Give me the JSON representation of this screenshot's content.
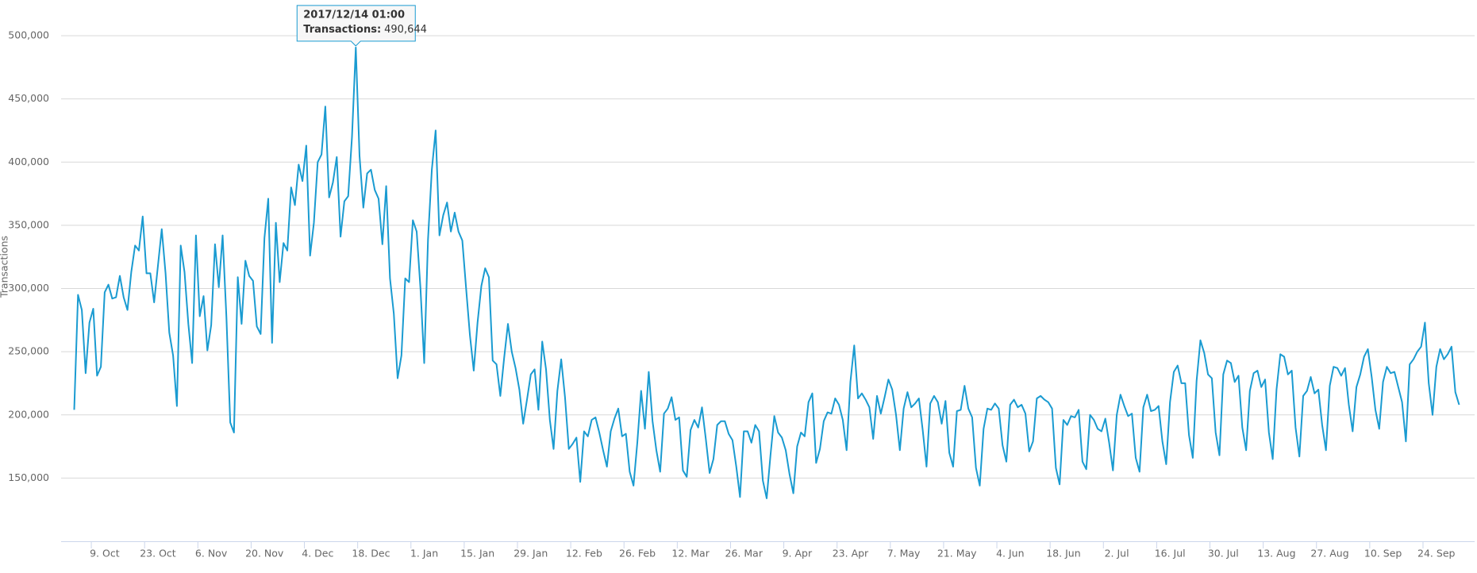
{
  "chart_data": {
    "type": "line",
    "y_axis_label": "Transactions",
    "categories": [
      null,
      null,
      null,
      null,
      null,
      null,
      null,
      null,
      "9. Oct",
      null,
      null,
      null,
      null,
      null,
      null,
      null,
      null,
      null,
      null,
      null,
      null,
      null,
      "23. Oct",
      null,
      null,
      null,
      null,
      null,
      null,
      null,
      null,
      null,
      null,
      null,
      null,
      null,
      "6. Nov",
      null,
      null,
      null,
      null,
      null,
      null,
      null,
      null,
      null,
      null,
      null,
      null,
      null,
      "20. Nov",
      null,
      null,
      null,
      null,
      null,
      null,
      null,
      null,
      null,
      null,
      null,
      null,
      null,
      "4. Dec",
      null,
      null,
      null,
      null,
      null,
      null,
      null,
      null,
      null,
      null,
      null,
      null,
      null,
      "18. Dec",
      null,
      null,
      null,
      null,
      null,
      null,
      null,
      null,
      null,
      null,
      null,
      null,
      null,
      "1. Jan",
      null,
      null,
      null,
      null,
      null,
      null,
      null,
      null,
      null,
      null,
      null,
      null,
      null,
      "15. Jan",
      null,
      null,
      null,
      null,
      null,
      null,
      null,
      null,
      null,
      null,
      null,
      null,
      null,
      "29. Jan",
      null,
      null,
      null,
      null,
      null,
      null,
      null,
      null,
      null,
      null,
      null,
      null,
      null,
      "12. Feb",
      null,
      null,
      null,
      null,
      null,
      null,
      null,
      null,
      null,
      null,
      null,
      null,
      null,
      "26. Feb",
      null,
      null,
      null,
      null,
      null,
      null,
      null,
      null,
      null,
      null,
      null,
      null,
      null,
      "12. Mar",
      null,
      null,
      null,
      null,
      null,
      null,
      null,
      null,
      null,
      null,
      null,
      null,
      null,
      "26. Mar",
      null,
      null,
      null,
      null,
      null,
      null,
      null,
      null,
      null,
      null,
      null,
      null,
      null,
      "9. Apr",
      null,
      null,
      null,
      null,
      null,
      null,
      null,
      null,
      null,
      null,
      null,
      null,
      null,
      "23. Apr",
      null,
      null,
      null,
      null,
      null,
      null,
      null,
      null,
      null,
      null,
      null,
      null,
      null,
      "7. May",
      null,
      null,
      null,
      null,
      null,
      null,
      null,
      null,
      null,
      null,
      null,
      null,
      null,
      "21. May",
      null,
      null,
      null,
      null,
      null,
      null,
      null,
      null,
      null,
      null,
      null,
      null,
      null,
      "4. Jun",
      null,
      null,
      null,
      null,
      null,
      null,
      null,
      null,
      null,
      null,
      null,
      null,
      null,
      "18. Jun",
      null,
      null,
      null,
      null,
      null,
      null,
      null,
      null,
      null,
      null,
      null,
      null,
      null,
      "2. Jul",
      null,
      null,
      null,
      null,
      null,
      null,
      null,
      null,
      null,
      null,
      null,
      null,
      null,
      "16. Jul",
      null,
      null,
      null,
      null,
      null,
      null,
      null,
      null,
      null,
      null,
      null,
      null,
      null,
      "30. Jul",
      null,
      null,
      null,
      null,
      null,
      null,
      null,
      null,
      null,
      null,
      null,
      null,
      null,
      "13. Aug",
      null,
      null,
      null,
      null,
      null,
      null,
      null,
      null,
      null,
      null,
      null,
      null,
      null,
      "27. Aug",
      null,
      null,
      null,
      null,
      null,
      null,
      null,
      null,
      null,
      null,
      null,
      null,
      null,
      "10. Sep",
      null,
      null,
      null,
      null,
      null,
      null,
      null,
      null,
      null,
      null,
      null,
      null,
      null,
      "24. Sep",
      null,
      null,
      null,
      null,
      null,
      null
    ],
    "series": [
      {
        "name": "Transactions",
        "color": "#1a9bd1",
        "values": [
          204000,
          295000,
          283000,
          233000,
          273000,
          284000,
          231000,
          238000,
          297000,
          303000,
          292000,
          293000,
          310000,
          293000,
          283000,
          313000,
          334000,
          330000,
          357000,
          312000,
          312000,
          289000,
          318000,
          347000,
          312000,
          265000,
          247000,
          207000,
          334000,
          313000,
          272000,
          241000,
          342000,
          278000,
          294000,
          251000,
          271000,
          335000,
          301000,
          342000,
          277000,
          194000,
          186000,
          309000,
          272000,
          322000,
          310000,
          306000,
          270000,
          264000,
          340000,
          371000,
          257000,
          352000,
          305000,
          336000,
          330000,
          380000,
          366000,
          398000,
          385000,
          413000,
          326000,
          352000,
          400000,
          406000,
          444000,
          372000,
          384000,
          404000,
          341000,
          369000,
          373000,
          420000,
          490644,
          405000,
          364000,
          391000,
          394000,
          378000,
          371000,
          335000,
          381000,
          308000,
          280000,
          229000,
          247000,
          308000,
          305000,
          354000,
          345000,
          300000,
          241000,
          339000,
          394000,
          425000,
          342000,
          358000,
          368000,
          345000,
          360000,
          345000,
          338000,
          300000,
          263000,
          235000,
          273000,
          302000,
          316000,
          309000,
          243000,
          240000,
          215000,
          245000,
          272000,
          250000,
          237000,
          220000,
          193000,
          212000,
          232000,
          236000,
          204000,
          258000,
          236000,
          196000,
          173000,
          219000,
          244000,
          214000,
          173000,
          177000,
          182000,
          147000,
          187000,
          183000,
          196000,
          198000,
          186000,
          172000,
          159000,
          187000,
          197000,
          205000,
          183000,
          185000,
          155000,
          144000,
          178000,
          219000,
          189000,
          234000,
          195000,
          172000,
          155000,
          201000,
          205000,
          214000,
          196000,
          198000,
          156000,
          151000,
          188000,
          196000,
          190000,
          206000,
          181000,
          154000,
          165000,
          192000,
          195000,
          195000,
          185000,
          180000,
          159000,
          135000,
          187000,
          187000,
          178000,
          192000,
          187000,
          148000,
          134000,
          168000,
          199000,
          186000,
          182000,
          172000,
          153000,
          138000,
          175000,
          186000,
          183000,
          210000,
          217000,
          162000,
          173000,
          195000,
          202000,
          201000,
          213000,
          208000,
          196000,
          172000,
          226000,
          255000,
          213000,
          217000,
          212000,
          206000,
          181000,
          215000,
          201000,
          214000,
          228000,
          220000,
          200000,
          172000,
          205000,
          218000,
          206000,
          209000,
          213000,
          188000,
          159000,
          209000,
          215000,
          210000,
          193000,
          211000,
          170000,
          159000,
          203000,
          204000,
          223000,
          205000,
          198000,
          158000,
          144000,
          189000,
          205000,
          204000,
          209000,
          205000,
          176000,
          163000,
          208000,
          212000,
          206000,
          208000,
          201000,
          171000,
          179000,
          213000,
          215000,
          212000,
          210000,
          205000,
          158000,
          145000,
          196000,
          192000,
          199000,
          198000,
          204000,
          163000,
          157000,
          200000,
          196000,
          189000,
          187000,
          197000,
          178000,
          156000,
          200000,
          216000,
          207000,
          199000,
          201000,
          166000,
          155000,
          206000,
          216000,
          203000,
          204000,
          207000,
          179000,
          161000,
          210000,
          234000,
          239000,
          225000,
          225000,
          184000,
          166000,
          227000,
          259000,
          249000,
          232000,
          229000,
          186000,
          168000,
          232000,
          243000,
          241000,
          226000,
          231000,
          190000,
          172000,
          219000,
          233000,
          235000,
          222000,
          228000,
          186000,
          165000,
          220000,
          248000,
          246000,
          232000,
          235000,
          190000,
          167000,
          215000,
          219000,
          230000,
          217000,
          220000,
          192000,
          172000,
          223000,
          238000,
          237000,
          231000,
          237000,
          208000,
          187000,
          222000,
          232000,
          246000,
          252000,
          230000,
          204000,
          189000,
          226000,
          238000,
          233000,
          234000,
          222000,
          210000,
          179000,
          240000,
          244000,
          250000,
          254000,
          273000,
          225000,
          200000,
          238000,
          252000,
          244000,
          248000,
          254000,
          218000,
          208000
        ]
      }
    ],
    "ylim": [
      100000,
      500000
    ],
    "yticks": [
      {
        "value": 150000,
        "label": "150,000"
      },
      {
        "value": 200000,
        "label": "200,000"
      },
      {
        "value": 250000,
        "label": "250,000"
      },
      {
        "value": 300000,
        "label": "300,000"
      },
      {
        "value": 350000,
        "label": "350,000"
      },
      {
        "value": 400000,
        "label": "400,000"
      },
      {
        "value": 450000,
        "label": "450,000"
      },
      {
        "value": 500000,
        "label": "500,000"
      }
    ],
    "grid": true,
    "tooltip": {
      "index": 74,
      "title": "2017/12/14 01:00",
      "label": "Transactions:",
      "value": 490644,
      "value_label": "490,644"
    }
  }
}
